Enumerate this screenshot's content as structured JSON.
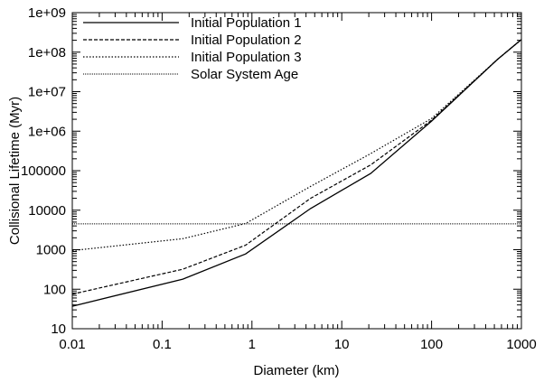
{
  "chart_data": {
    "type": "line",
    "title": "",
    "xlabel": "Diameter (km)",
    "ylabel": "Collisional Lifetime (Myr)",
    "x_scale": "log",
    "y_scale": "log",
    "xlim": [
      0.01,
      1000
    ],
    "ylim": [
      10,
      1000000000
    ],
    "grid": false,
    "legend_position": "top-left",
    "x_ticks": [
      {
        "value": 0.01,
        "label": "0.01"
      },
      {
        "value": 0.1,
        "label": "0.1"
      },
      {
        "value": 1,
        "label": "1"
      },
      {
        "value": 10,
        "label": "10"
      },
      {
        "value": 100,
        "label": "100"
      },
      {
        "value": 1000,
        "label": "1000"
      }
    ],
    "y_ticks": [
      {
        "value": 10,
        "label": "10"
      },
      {
        "value": 100,
        "label": "100"
      },
      {
        "value": 1000,
        "label": "1000"
      },
      {
        "value": 10000,
        "label": "10000"
      },
      {
        "value": 100000,
        "label": "100000"
      },
      {
        "value": 1000000,
        "label": "1e+06"
      },
      {
        "value": 10000000,
        "label": "1e+07"
      },
      {
        "value": 100000000,
        "label": "1e+08"
      },
      {
        "value": 1000000000,
        "label": "1e+09"
      }
    ],
    "series": [
      {
        "name": "Initial Population 1",
        "style": "solid",
        "x": [
          0.01,
          0.17,
          0.85,
          4.5,
          21,
          100,
          540,
          1000
        ],
        "y": [
          37,
          180,
          780,
          11000,
          85000,
          1800000,
          65000000,
          210000000
        ]
      },
      {
        "name": "Initial Population 2",
        "style": "dashed",
        "x": [
          0.01,
          0.17,
          0.85,
          4.5,
          21,
          100,
          540,
          1000
        ],
        "y": [
          75,
          320,
          1300,
          20000,
          140000,
          1900000,
          65000000,
          210000000
        ]
      },
      {
        "name": "Initial Population 3",
        "style": "dotted",
        "x": [
          0.01,
          0.17,
          0.85,
          4.5,
          21,
          100,
          540,
          1000
        ],
        "y": [
          950,
          1900,
          4600,
          40000,
          270000,
          2100000,
          65000000,
          210000000
        ]
      },
      {
        "name": "Solar System Age",
        "style": "fine-dotted",
        "x": [
          0.01,
          1000
        ],
        "y": [
          4500,
          4500
        ]
      }
    ]
  }
}
